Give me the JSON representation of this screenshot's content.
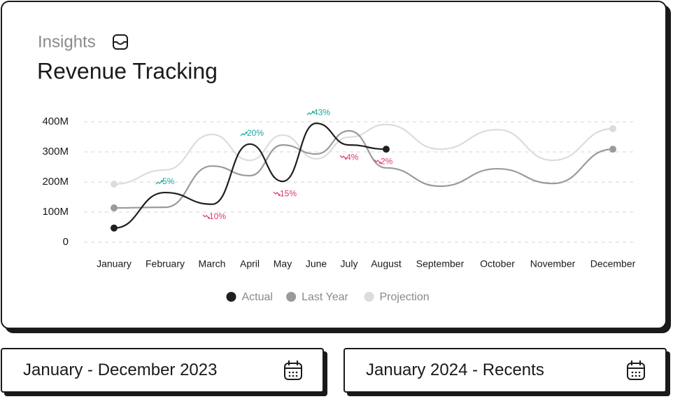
{
  "header": {
    "kicker": "Insights"
  },
  "chart_data": {
    "type": "line",
    "title": "Revenue Tracking",
    "categories": [
      "January",
      "February",
      "March",
      "April",
      "May",
      "June",
      "July",
      "August",
      "September",
      "October",
      "November",
      "December"
    ],
    "series": [
      {
        "name": "Actual",
        "color": "#1f1f1f",
        "values": [
          47,
          165,
          126,
          326,
          202,
          395,
          323,
          309,
          null,
          null,
          null,
          null
        ]
      },
      {
        "name": "Last Year",
        "color": "#9a9a9a",
        "values": [
          114,
          116,
          253,
          221,
          323,
          293,
          370,
          247,
          186,
          244,
          195,
          309
        ]
      },
      {
        "name": "Projection",
        "color": "#dcdcdc",
        "values": [
          193,
          240,
          358,
          272,
          356,
          277,
          349,
          391,
          309,
          374,
          272,
          377
        ]
      }
    ],
    "annotations": [
      null,
      "5%",
      "10%",
      "20%",
      "15%",
      "43%",
      "4%",
      "2%",
      null,
      null,
      null,
      null
    ],
    "annotation_trend": [
      null,
      "up",
      "down",
      "up",
      "down",
      "up",
      "down",
      "down",
      null,
      null,
      null,
      null
    ],
    "trend_colors": {
      "up": "#13a89e",
      "down": "#e0336b"
    },
    "ylim": [
      0,
      400
    ],
    "yticks": [
      {
        "value": 0,
        "label": "0"
      },
      {
        "value": 100,
        "label": "100M"
      },
      {
        "value": 200,
        "label": "200M"
      },
      {
        "value": 300,
        "label": "300M"
      },
      {
        "value": 400,
        "label": "400M"
      }
    ],
    "grid": true,
    "legend": "bottom"
  },
  "date_ranges": [
    "January - December 2023",
    "January 2024 - Recents"
  ]
}
